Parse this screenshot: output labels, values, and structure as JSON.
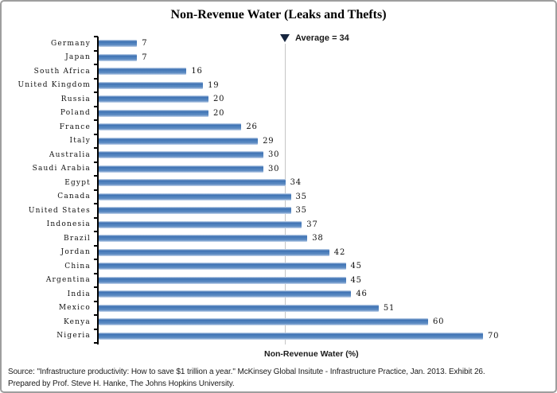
{
  "chart_data": {
    "type": "bar",
    "orientation": "horizontal",
    "title": "Non-Revenue Water (Leaks and Thefts)",
    "xlabel": "Non-Revenue Water (%)",
    "ylabel": "",
    "xlim": [
      0,
      70
    ],
    "grid": false,
    "legend": "none",
    "bar_color": "#4f81bd",
    "categories": [
      "Germany",
      "Japan",
      "South Africa",
      "United Kingdom",
      "Russia",
      "Poland",
      "France",
      "Italy",
      "Australia",
      "Saudi Arabia",
      "Egypt",
      "Canada",
      "United States",
      "Indonesia",
      "Brazil",
      "Jordan",
      "China",
      "Argentina",
      "India",
      "Mexico",
      "Kenya",
      "Nigeria"
    ],
    "values": [
      7,
      7,
      16,
      19,
      20,
      20,
      26,
      29,
      30,
      30,
      34,
      35,
      35,
      37,
      38,
      42,
      45,
      45,
      46,
      51,
      60,
      70
    ],
    "annotation": {
      "label": "Average = 34",
      "value": 34,
      "marker": "down-triangle-icon",
      "marker_color": "#16253e",
      "line_color": "#c6c6c6"
    }
  },
  "footer": {
    "source": "Source: \"Infrastructure productivity: How to save $1 trillion a year.\" McKinsey Global Insitute - Infrastructure Practice, Jan. 2013. Exhibit 26.",
    "prepared": "Prepared by Prof. Steve H. Hanke, The Johns Hopkins University."
  }
}
